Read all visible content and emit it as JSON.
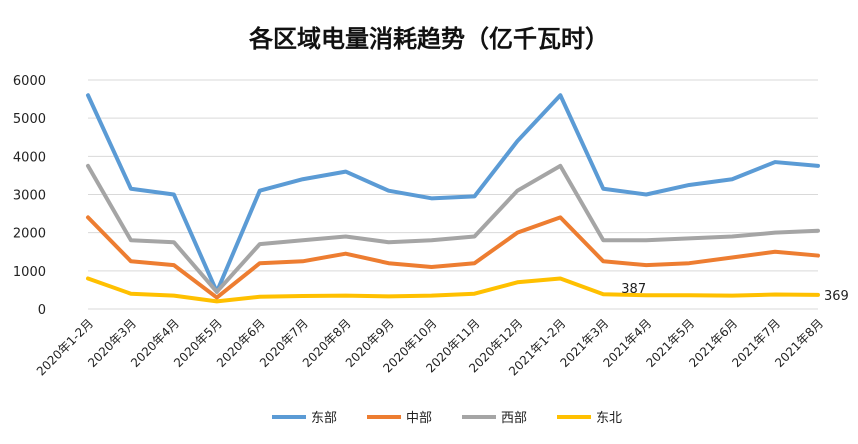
{
  "chart_data": {
    "type": "line",
    "title": "各区域电量消耗趋势（亿千瓦时）",
    "categories": [
      "2020年1-2月",
      "2020年3月",
      "2020年4月",
      "2020年5月",
      "2020年6月",
      "2020年7月",
      "2020年8月",
      "2020年9月",
      "2020年10月",
      "2020年11月",
      "2020年12月",
      "2021年1-2月",
      "2021年3月",
      "2021年4月",
      "2021年5月",
      "2021年6月",
      "2021年7月",
      "2021年8月"
    ],
    "ylim": [
      0,
      6000
    ],
    "yticks": [
      0,
      1000,
      2000,
      3000,
      4000,
      5000,
      6000
    ],
    "grid": true,
    "legend_position": "bottom",
    "series": [
      {
        "name": "东部",
        "color": "#5b9bd5",
        "values": [
          5600,
          3150,
          3000,
          450,
          3100,
          3400,
          3600,
          3100,
          2900,
          2950,
          4400,
          5600,
          3150,
          3000,
          3250,
          3400,
          3850,
          3750
        ]
      },
      {
        "name": "中部",
        "color": "#ed7d31",
        "values": [
          2400,
          1250,
          1150,
          300,
          1200,
          1250,
          1450,
          1200,
          1100,
          1200,
          2000,
          2400,
          1250,
          1150,
          1200,
          1350,
          1500,
          1400
        ]
      },
      {
        "name": "西部",
        "color": "#a5a5a5",
        "values": [
          3750,
          1800,
          1750,
          450,
          1700,
          1800,
          1900,
          1750,
          1800,
          1900,
          3100,
          3750,
          1800,
          1800,
          1850,
          1900,
          2000,
          2050
        ]
      },
      {
        "name": "东北",
        "color": "#ffc000",
        "values": [
          800,
          400,
          350,
          200,
          320,
          340,
          350,
          330,
          350,
          400,
          700,
          800,
          387,
          360,
          360,
          350,
          380,
          369
        ]
      }
    ],
    "annotations": [
      {
        "series": "东北",
        "category": "2021年3月",
        "text": "387"
      },
      {
        "series": "东北",
        "category": "2021年8月",
        "text": "369"
      }
    ]
  }
}
